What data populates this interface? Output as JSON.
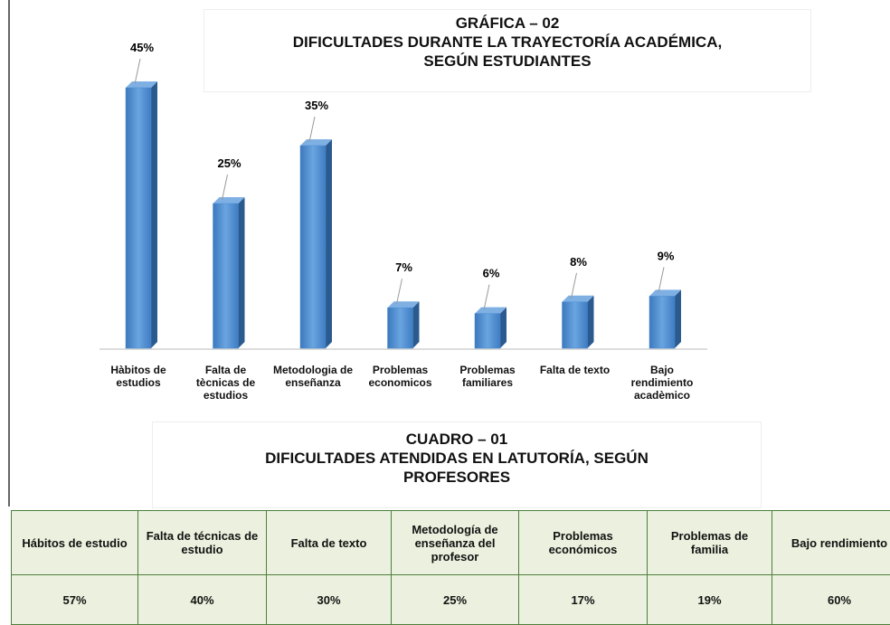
{
  "chart_data": {
    "type": "bar3d",
    "title": [
      "GRÁFICA – 02",
      "DIFICULTADES DURANTE LA TRAYECTORÍA ACADÉMICA,",
      "SEGÚN ESTUDIANTES"
    ],
    "categories": [
      "Hàbitos de estudios",
      "Falta de tècnicas de estudios",
      "Metodologia de enseñanza",
      "Problemas economicos",
      "Problemas familiares",
      "Falta de texto",
      "Bajo rendimiento acadèmico"
    ],
    "values": [
      45,
      25,
      35,
      7,
      6,
      8,
      9
    ],
    "value_labels": [
      "45%",
      "25%",
      "35%",
      "7%",
      "6%",
      "8%",
      "9%"
    ],
    "color": "#4a8bd0"
  },
  "table": {
    "title": [
      "CUADRO – 01",
      "DIFICULTADES ATENDIDAS EN LATUTORÍA, SEGÚN",
      "PROFESORES"
    ],
    "header": [
      "Hábitos de estudio",
      "Falta de técnicas de estudio",
      "Falta de texto",
      "Metodología de enseñanza del profesor",
      "Problemas económicos",
      "Problemas de familia",
      "Bajo rendimiento"
    ],
    "rows": [
      [
        "57%",
        "40%",
        "30%",
        "25%",
        "17%",
        "19%",
        "60%"
      ]
    ]
  }
}
